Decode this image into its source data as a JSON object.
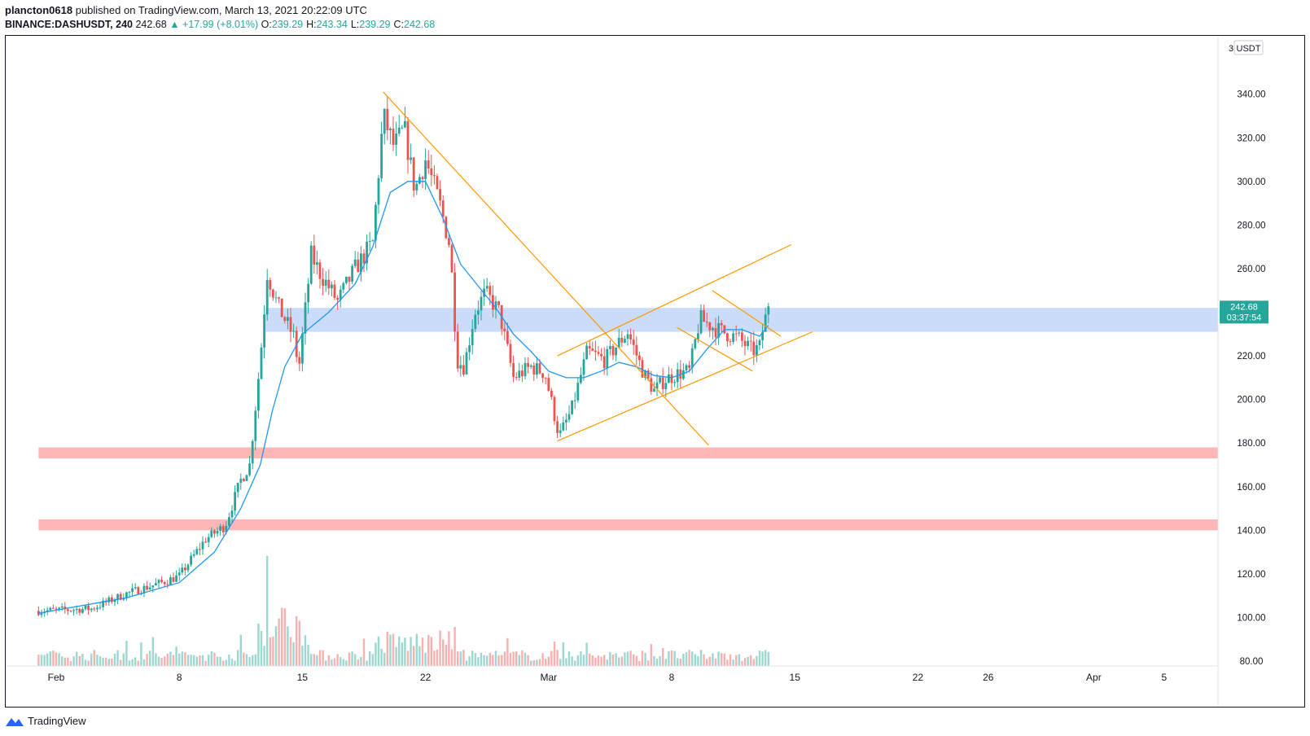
{
  "header": {
    "author": "plancton0618",
    "published_text": "published on TradingView.com, March 13, 2021 20:22:09 UTC",
    "symbol": "BINANCE:DASHUSDT, 240",
    "last": "242.68",
    "change_arrow": "▲",
    "change": "+17.99 (+8.01%)",
    "o_label": "O:",
    "o_value": "239.29",
    "h_label": "H:",
    "h_value": "243.34",
    "l_label": "L:",
    "l_value": "239.29",
    "c_label": "C:",
    "c_value": "242.68"
  },
  "footer": {
    "brand": "TradingView",
    "logo_icon": "tradingview-logo-icon"
  },
  "colors": {
    "up": "#26a69a",
    "down": "#ef5350",
    "ema": "#2196f3",
    "trend": "#ff9800",
    "resistance_zone": "#b3cdf7",
    "support_zone": "#ff9e9e"
  },
  "chart_data": {
    "type": "candlestick",
    "symbol": "BINANCE:DASHUSDT",
    "interval": "240",
    "ylim": [
      75,
      350
    ],
    "y_ticks": [
      80,
      100,
      120,
      140,
      160,
      180,
      200,
      220,
      240,
      260,
      280,
      300,
      320,
      340
    ],
    "y_tick_labels": [
      "80.00",
      "100.00",
      "120.00",
      "140.00",
      "160.00",
      "180.00",
      "200.00",
      "220.00",
      "240.00",
      "260.00",
      "280.00",
      "300.00",
      "320.00",
      "340.00"
    ],
    "axis_header": [
      "3",
      "USDT"
    ],
    "x_ticks": [
      {
        "day": 1,
        "label": "Feb"
      },
      {
        "day": 8,
        "label": "8"
      },
      {
        "day": 15,
        "label": "15"
      },
      {
        "day": 22,
        "label": "22"
      },
      {
        "day": 29,
        "label": "Mar"
      },
      {
        "day": 36,
        "label": "8"
      },
      {
        "day": 43,
        "label": "15"
      },
      {
        "day": 50,
        "label": "22"
      },
      {
        "day": 54,
        "label": "26"
      },
      {
        "day": 60,
        "label": "Apr"
      },
      {
        "day": 64,
        "label": "5"
      }
    ],
    "keypoints": [
      [
        0,
        103
      ],
      [
        3,
        104
      ],
      [
        5,
        111
      ],
      [
        7,
        116
      ],
      [
        8,
        119
      ],
      [
        9.5,
        136
      ],
      [
        10.6,
        142
      ],
      [
        11.5,
        163
      ],
      [
        12,
        170
      ],
      [
        12.6,
        218
      ],
      [
        13,
        258
      ],
      [
        13.6,
        243
      ],
      [
        14.5,
        229
      ],
      [
        14.8,
        214
      ],
      [
        15.5,
        266
      ],
      [
        16,
        258
      ],
      [
        17,
        245
      ],
      [
        18,
        260
      ],
      [
        19,
        272
      ],
      [
        19.6,
        330
      ],
      [
        20.2,
        316
      ],
      [
        20.8,
        324
      ],
      [
        21.4,
        296
      ],
      [
        22,
        310
      ],
      [
        22.8,
        290
      ],
      [
        23.4,
        270
      ],
      [
        23.8,
        218
      ],
      [
        24.2,
        215
      ],
      [
        24.8,
        240
      ],
      [
        25.4,
        249
      ],
      [
        26.2,
        240
      ],
      [
        27,
        210
      ],
      [
        28,
        215
      ],
      [
        28.8,
        212
      ],
      [
        29.6,
        183
      ],
      [
        30.3,
        195
      ],
      [
        31.2,
        222
      ],
      [
        32.2,
        218
      ],
      [
        33.5,
        231
      ],
      [
        34.4,
        212
      ],
      [
        35,
        204
      ],
      [
        35.6,
        209
      ],
      [
        36.4,
        212
      ],
      [
        37,
        213
      ],
      [
        37.6,
        237
      ],
      [
        38.6,
        232
      ],
      [
        39.8,
        228
      ],
      [
        40.6,
        222
      ],
      [
        41,
        224
      ],
      [
        41.2,
        233
      ],
      [
        41.5,
        242.68
      ]
    ],
    "ema": [
      [
        0,
        102
      ],
      [
        5,
        109
      ],
      [
        8,
        116
      ],
      [
        10,
        130
      ],
      [
        11.5,
        150
      ],
      [
        12.6,
        170
      ],
      [
        13.3,
        195
      ],
      [
        14,
        215
      ],
      [
        15,
        230
      ],
      [
        16.5,
        240
      ],
      [
        18,
        253
      ],
      [
        19,
        270
      ],
      [
        20,
        295
      ],
      [
        21,
        300
      ],
      [
        22,
        300
      ],
      [
        23,
        283
      ],
      [
        24,
        262
      ],
      [
        25,
        252
      ],
      [
        26,
        242
      ],
      [
        27,
        230
      ],
      [
        28,
        222
      ],
      [
        29,
        213
      ],
      [
        30,
        210
      ],
      [
        31,
        210
      ],
      [
        32,
        213
      ],
      [
        33,
        217
      ],
      [
        34,
        215
      ],
      [
        35,
        211
      ],
      [
        36,
        210
      ],
      [
        37,
        213
      ],
      [
        38,
        223
      ],
      [
        39,
        232
      ],
      [
        40,
        232
      ],
      [
        41,
        229
      ],
      [
        41.5,
        234
      ]
    ],
    "zones": [
      {
        "role": "resistance",
        "from": 231,
        "to": 242,
        "start_day": 12.9
      },
      {
        "role": "support",
        "from": 173,
        "to": 178,
        "start_day": 0
      },
      {
        "role": "support",
        "from": 140,
        "to": 145,
        "start_day": 0
      }
    ],
    "trendlines": [
      {
        "x1": 19.6,
        "y1": 341,
        "x2": 38.1,
        "y2": 179
      },
      {
        "x1": 29.5,
        "y1": 181,
        "x2": 44.0,
        "y2": 231
      },
      {
        "x1": 29.5,
        "y1": 220,
        "x2": 42.8,
        "y2": 271
      },
      {
        "x1": 38.3,
        "y1": 250,
        "x2": 42.2,
        "y2": 229
      },
      {
        "x1": 36.3,
        "y1": 233,
        "x2": 40.6,
        "y2": 213
      }
    ],
    "last_price": {
      "value": "242.68",
      "countdown": "03:37:54"
    }
  }
}
